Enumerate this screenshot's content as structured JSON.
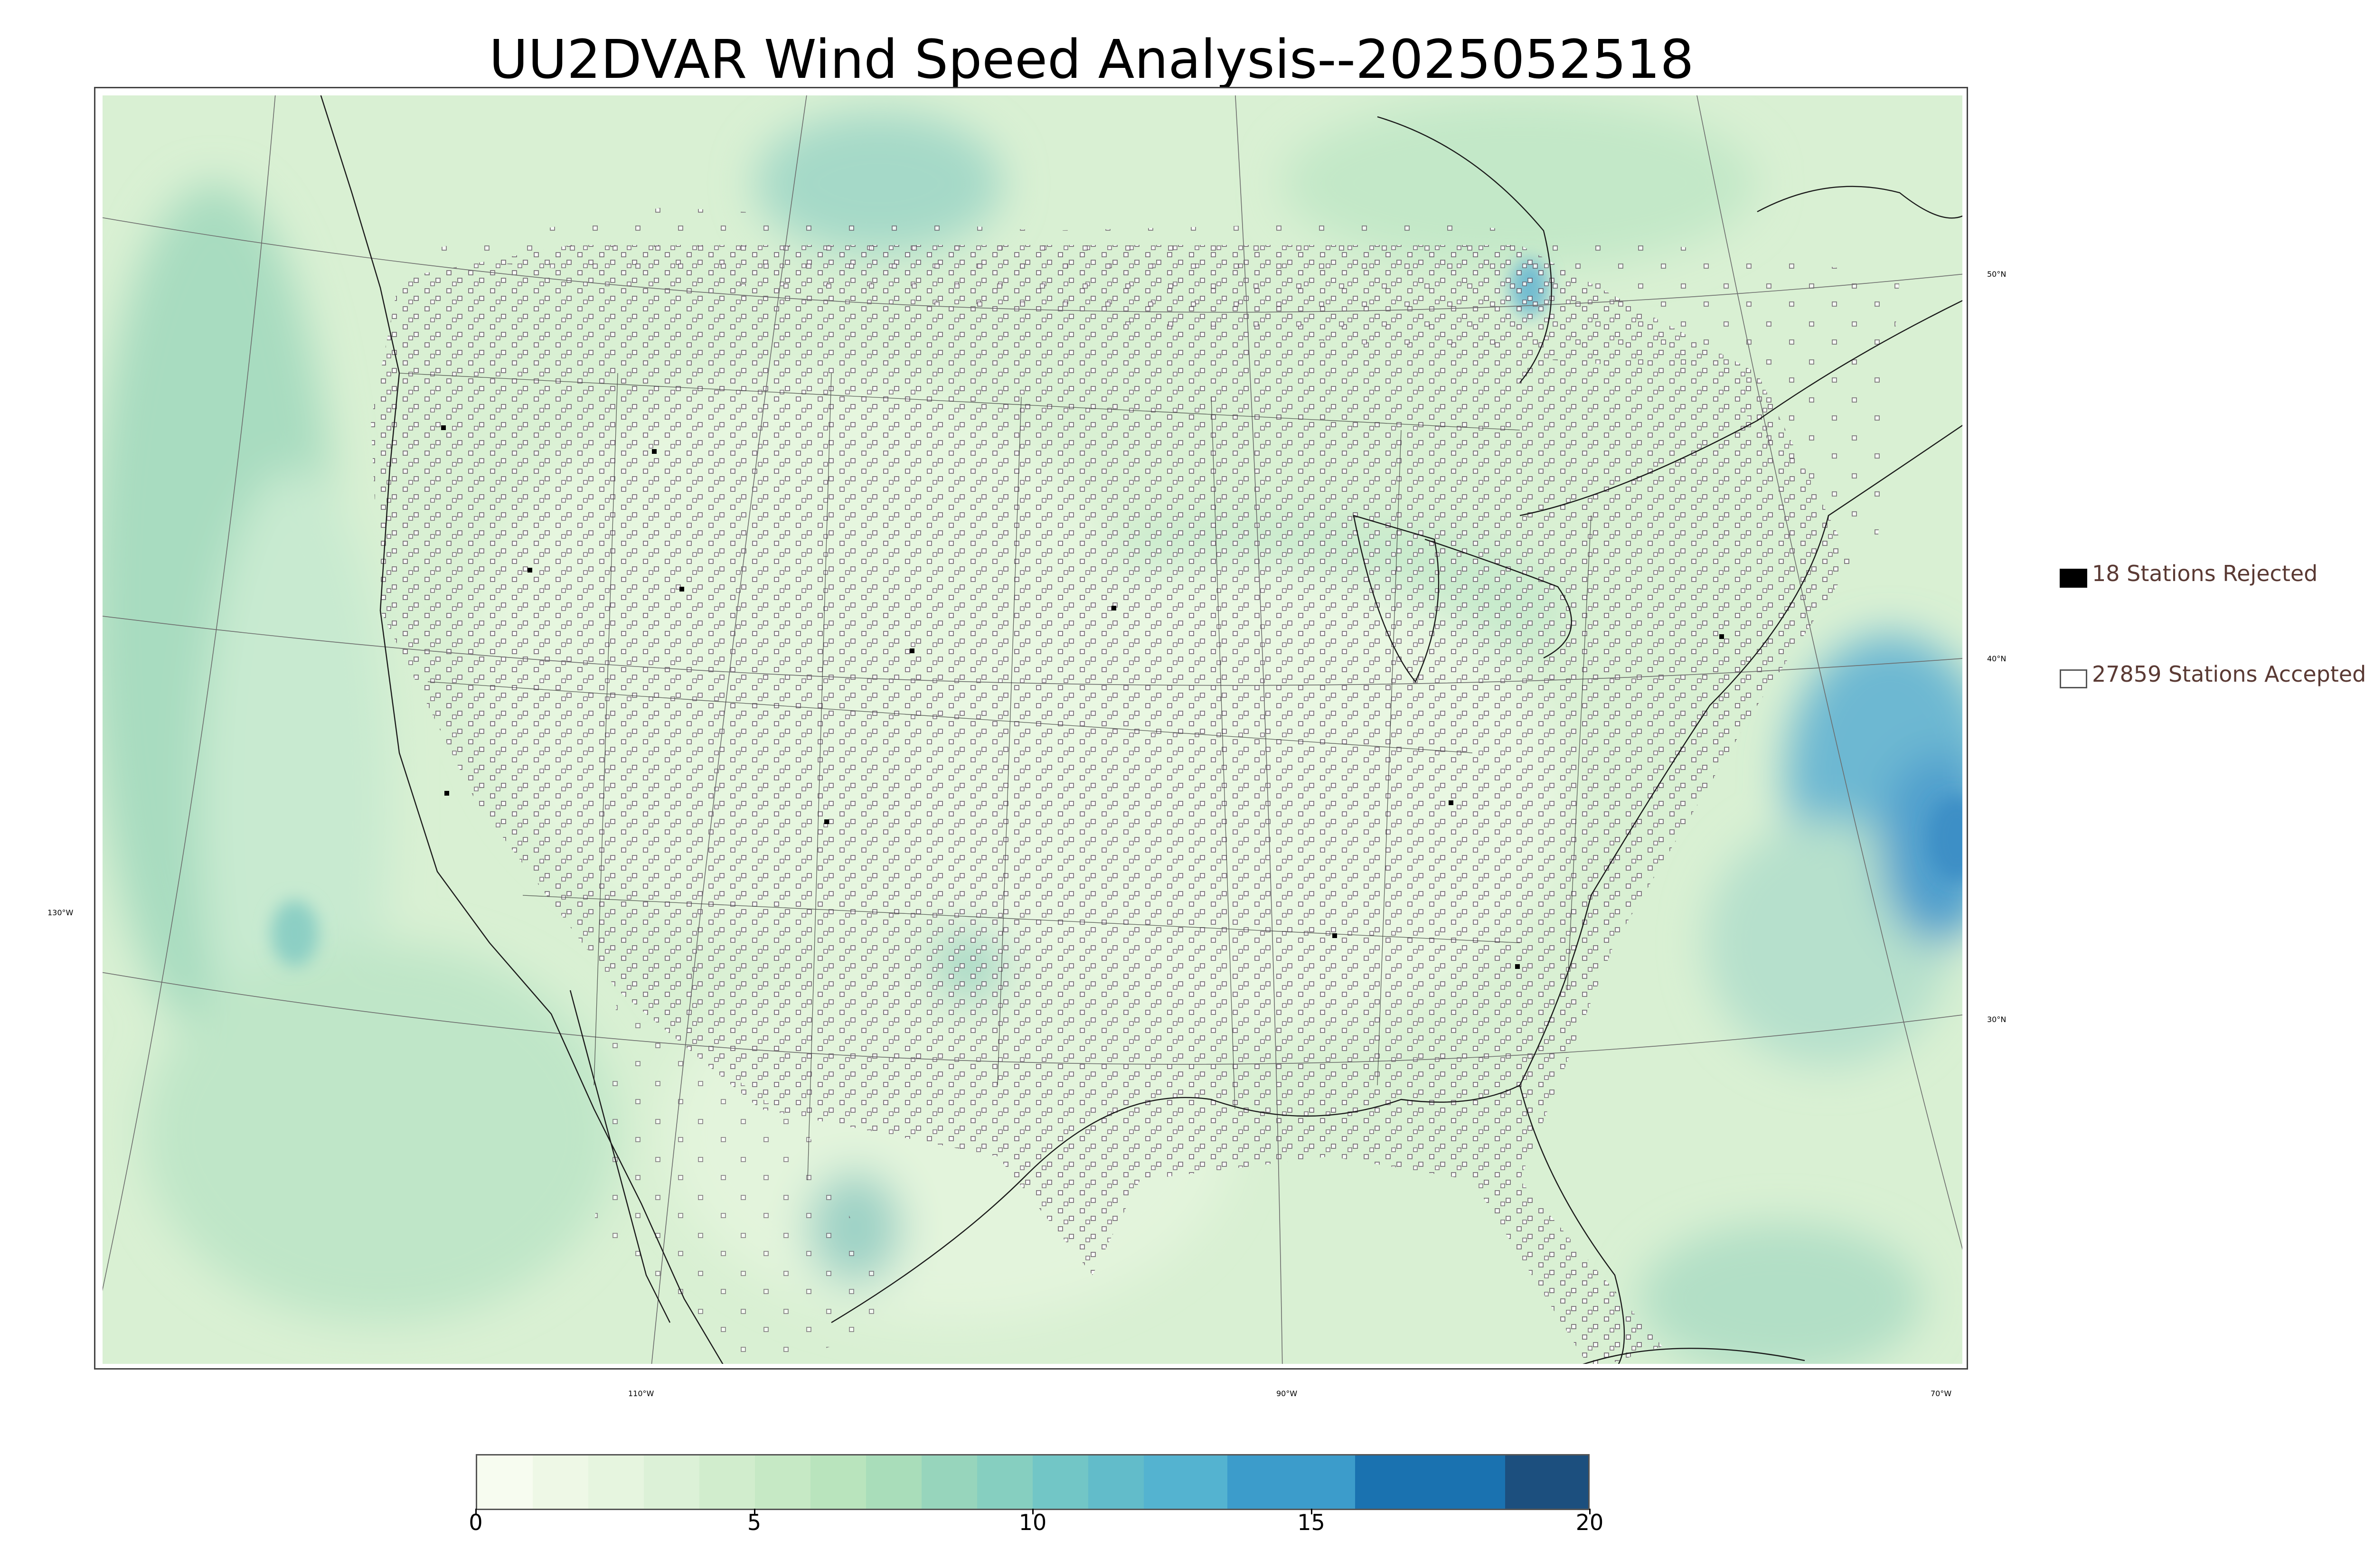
{
  "title": "UU2DVAR Wind Speed Analysis--2025052518",
  "map": {
    "lat_labels": [
      "50°N",
      "40°N",
      "30°N"
    ],
    "lon_labels": [
      "130°W",
      "110°W",
      "90°W",
      "70°W"
    ]
  },
  "legend": {
    "rejected": "18 Stations Rejected",
    "accepted": "27859 Stations Accepted",
    "rejected_color": "#000000",
    "accepted_color": "#ffffff"
  },
  "colorbar": {
    "ticks": [
      "0",
      "5",
      "10",
      "15",
      "20"
    ],
    "range": [
      0,
      20
    ],
    "colors": [
      {
        "from": 0,
        "to": 1,
        "color": "#f7fcf0"
      },
      {
        "from": 1,
        "to": 2,
        "color": "#eef8e6"
      },
      {
        "from": 2,
        "to": 3,
        "color": "#e6f5df"
      },
      {
        "from": 3,
        "to": 4,
        "color": "#dcf1d7"
      },
      {
        "from": 4,
        "to": 5,
        "color": "#d1edcd"
      },
      {
        "from": 5,
        "to": 6,
        "color": "#c6e9c5"
      },
      {
        "from": 6,
        "to": 7,
        "color": "#b9e4bd"
      },
      {
        "from": 7,
        "to": 8,
        "color": "#a9ddba"
      },
      {
        "from": 8,
        "to": 9,
        "color": "#97d5bc"
      },
      {
        "from": 9,
        "to": 10,
        "color": "#86cfc0"
      },
      {
        "from": 10,
        "to": 11,
        "color": "#72c6c6"
      },
      {
        "from": 11,
        "to": 12,
        "color": "#62bcca"
      },
      {
        "from": 12,
        "to": 13.5,
        "color": "#54b3d0"
      },
      {
        "from": 13.5,
        "to": 15.8,
        "color": "#3c9ccb"
      },
      {
        "from": 15.8,
        "to": 18.5,
        "color": "#1a72b0"
      },
      {
        "from": 18.5,
        "to": 20,
        "color": "#1c4f7e"
      }
    ]
  },
  "chart_data": {
    "type": "heatmap",
    "title": "UU2DVAR Wind Speed Analysis--2025052518",
    "colorbar_range": [
      0,
      20
    ],
    "colorbar_ticks": [
      0,
      5,
      10,
      15,
      20
    ],
    "stations_rejected": 18,
    "stations_accepted": 27859,
    "latitude_lines": [
      "50°N",
      "40°N",
      "30°N"
    ],
    "longitude_lines": [
      "130°W",
      "110°W",
      "90°W",
      "70°W"
    ]
  }
}
